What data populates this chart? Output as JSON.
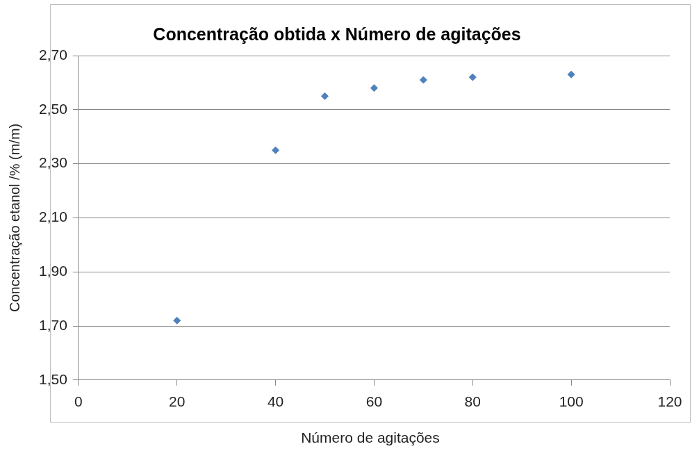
{
  "chart_data": {
    "type": "scatter",
    "title": "Concentração obtida x Número de agitações",
    "xlabel": "Número de agitações",
    "ylabel": "Concentração etanol /% (m/m)",
    "x": [
      20,
      40,
      50,
      60,
      70,
      80,
      100
    ],
    "series": [
      {
        "color": "#4f81bd",
        "values": [
          1.72,
          2.35,
          2.55,
          2.58,
          2.61,
          2.62,
          2.63
        ]
      }
    ],
    "xlim": [
      0,
      120
    ],
    "xticks": [
      0,
      20,
      40,
      60,
      80,
      100,
      120
    ],
    "ylim": [
      1.5,
      2.7
    ],
    "yticks": [
      {
        "value": 1.5,
        "label": "1,50"
      },
      {
        "value": 1.7,
        "label": "1,70"
      },
      {
        "value": 1.9,
        "label": "1,90"
      },
      {
        "value": 2.1,
        "label": "2,10"
      },
      {
        "value": 2.3,
        "label": "2,30"
      },
      {
        "value": 2.5,
        "label": "2,50"
      },
      {
        "value": 2.7,
        "label": "2,70"
      }
    ],
    "grid": "y",
    "legend": false,
    "marker": "diamond"
  }
}
